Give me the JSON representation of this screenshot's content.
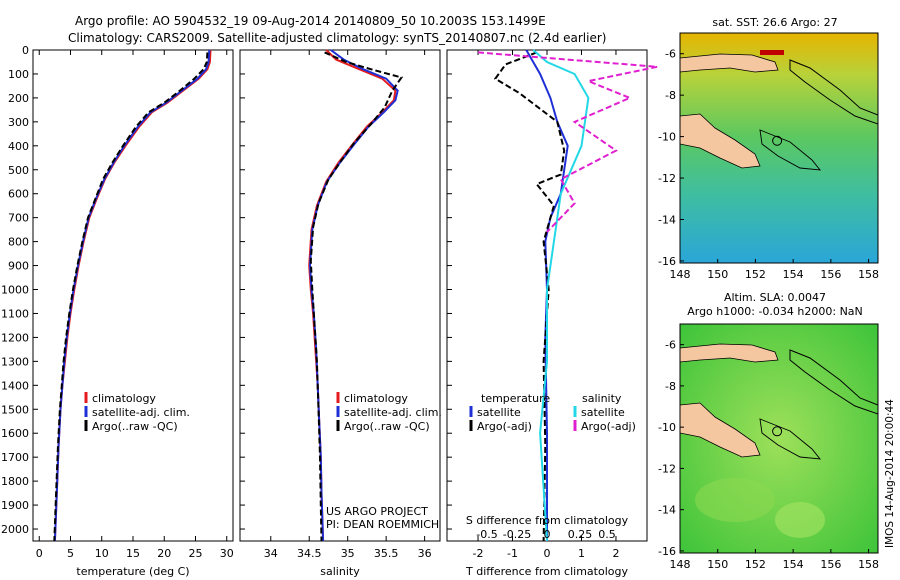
{
  "header": {
    "line1": "Argo profile: AO 5904532_19 09-Aug-2014 20140809_50 10.2003S 153.1499E",
    "line2": "Climatology: CARS2009. Satellite-adjusted climatology: synTS_20140807.nc (2.4d earlier)"
  },
  "colors": {
    "climatology": "#e41a1c",
    "satellite": "#1f2fd6",
    "argo": "#000000",
    "salinity_sat": "#22d8e6",
    "salinity_argo": "#e020d0"
  },
  "chart_data": [
    {
      "type": "line",
      "title": "",
      "xlabel": "temperature (deg C)",
      "ylabel": "",
      "xlim": [
        -1,
        31
      ],
      "ylim": [
        2050,
        0
      ],
      "xticks": [
        0,
        5,
        10,
        15,
        20,
        25,
        30
      ],
      "yticks": [
        0,
        100,
        200,
        300,
        400,
        500,
        600,
        700,
        800,
        900,
        1000,
        1100,
        1200,
        1300,
        1400,
        1500,
        1600,
        1700,
        1800,
        1900,
        2000
      ],
      "legend": [
        "climatology",
        "satellite-adj. clim.",
        "Argo(..raw -QC)"
      ],
      "series": [
        {
          "name": "climatology",
          "color": "#e41a1c",
          "x": [
            27.4,
            27.3,
            26.9,
            25.5,
            23.0,
            20.5,
            18.0,
            16.0,
            13.8,
            12.0,
            10.5,
            9.2,
            8.0,
            7.1,
            6.3,
            5.6,
            5.0,
            4.5,
            4.1,
            3.7,
            3.4,
            3.1,
            2.8,
            2.5
          ],
          "y": [
            0,
            50,
            80,
            120,
            170,
            220,
            260,
            320,
            400,
            470,
            540,
            620,
            700,
            800,
            900,
            1000,
            1100,
            1200,
            1300,
            1400,
            1500,
            1650,
            1850,
            2050
          ]
        },
        {
          "name": "satellite-adj. clim.",
          "color": "#1f2fd6",
          "x": [
            27.2,
            27.1,
            26.7,
            25.3,
            22.8,
            20.3,
            17.8,
            15.8,
            13.6,
            11.9,
            10.4,
            9.1,
            7.9,
            7.0,
            6.2,
            5.5,
            4.9,
            4.4,
            4.0,
            3.7,
            3.4,
            3.1,
            2.8,
            2.5
          ],
          "y": [
            0,
            50,
            80,
            120,
            170,
            220,
            260,
            320,
            400,
            470,
            540,
            620,
            700,
            800,
            900,
            1000,
            1100,
            1200,
            1300,
            1400,
            1500,
            1650,
            1850,
            2050
          ]
        },
        {
          "name": "Argo(..raw -QC)",
          "color": "#000000",
          "x": [
            26.9,
            26.8,
            26.3,
            24.8,
            22.5,
            20.0,
            17.5,
            15.5,
            13.4,
            11.7,
            10.2,
            9.0,
            7.8,
            6.9,
            6.1,
            5.4,
            4.8,
            4.3,
            3.9,
            3.6,
            3.3,
            3.0,
            2.7,
            2.4
          ],
          "y": [
            10,
            50,
            80,
            120,
            170,
            220,
            260,
            320,
            400,
            470,
            540,
            620,
            700,
            800,
            900,
            1000,
            1100,
            1200,
            1300,
            1400,
            1500,
            1650,
            1850,
            2050
          ]
        }
      ]
    },
    {
      "type": "line",
      "xlabel": "salinity",
      "xlim": [
        33.6,
        36.2
      ],
      "ylim": [
        2050,
        0
      ],
      "xticks": [
        34,
        34.5,
        35,
        35.5,
        36
      ],
      "legend": [
        "climatology",
        "satellite-adj. clim.",
        "Argo(..raw -QC)"
      ],
      "series": [
        {
          "name": "climatology",
          "color": "#e41a1c",
          "x": [
            34.72,
            34.85,
            35.15,
            35.45,
            35.62,
            35.6,
            35.45,
            35.25,
            35.05,
            34.88,
            34.72,
            34.6,
            34.53,
            34.5,
            34.52,
            34.55,
            34.58,
            34.61,
            34.63,
            34.65,
            34.66,
            34.67,
            34.68
          ],
          "y": [
            0,
            40,
            80,
            120,
            170,
            210,
            260,
            320,
            400,
            470,
            550,
            650,
            750,
            900,
            1000,
            1100,
            1250,
            1400,
            1550,
            1700,
            1850,
            1950,
            2050
          ]
        },
        {
          "name": "satellite-adj. clim.",
          "color": "#1f2fd6",
          "x": [
            34.78,
            34.95,
            35.2,
            35.5,
            35.65,
            35.62,
            35.47,
            35.27,
            35.07,
            34.9,
            34.73,
            34.61,
            34.54,
            34.51,
            34.53,
            34.56,
            34.59,
            34.61,
            34.63,
            34.65,
            34.66,
            34.67,
            34.68
          ],
          "y": [
            0,
            40,
            80,
            120,
            170,
            210,
            260,
            320,
            400,
            470,
            550,
            650,
            750,
            900,
            1000,
            1100,
            1250,
            1400,
            1550,
            1700,
            1850,
            1950,
            2050
          ]
        },
        {
          "name": "Argo(..raw -QC)",
          "color": "#000000",
          "x": [
            34.7,
            34.98,
            35.3,
            35.7,
            35.58,
            35.48,
            35.3,
            35.08,
            34.92,
            34.75,
            34.62,
            34.55,
            34.52,
            34.54,
            34.57,
            34.6,
            34.62,
            34.64,
            34.65,
            34.66
          ],
          "y": [
            10,
            50,
            80,
            115,
            170,
            240,
            310,
            390,
            460,
            540,
            640,
            740,
            880,
            1000,
            1150,
            1300,
            1500,
            1700,
            1900,
            2050
          ]
        }
      ]
    },
    {
      "type": "line",
      "xlabel": "T difference from climatology",
      "xlabel2": "S difference from climatology",
      "xlim": [
        -2.9,
        2.9
      ],
      "ylim": [
        2050,
        0
      ],
      "xticks": [
        -2,
        -1,
        0,
        1,
        2
      ],
      "xticks_top": [
        "-0.5",
        "-0.25",
        "0",
        "0.25",
        "0.5"
      ],
      "legend": {
        "temperature": "temperature",
        "salinity": "salinity",
        "t_sat": "satellite",
        "t_argo": "Argo(-adj)",
        "s_sat": "satellite",
        "s_argo": "Argo(-adj)"
      },
      "series": [
        {
          "name": "temperature satellite",
          "color": "#1f2fd6",
          "x": [
            -0.6,
            -0.4,
            -0.2,
            0.1,
            0.3,
            0.6,
            0.5,
            0.4,
            0.1,
            -0.05,
            0.0,
            -0.05,
            0.0,
            0.0
          ],
          "y": [
            0,
            50,
            100,
            200,
            300,
            400,
            500,
            600,
            700,
            800,
            1000,
            1200,
            1600,
            2050
          ]
        },
        {
          "name": "temperature Argo(-adj)",
          "color": "#000000",
          "x": [
            -0.3,
            -1.2,
            -1.5,
            -0.8,
            0.3,
            0.5,
            0.4,
            -0.3,
            0.2,
            -0.1,
            0.05,
            -0.1,
            -0.05,
            -0.1
          ],
          "y": [
            10,
            60,
            120,
            180,
            300,
            420,
            520,
            560,
            650,
            800,
            1000,
            1300,
            1650,
            2050
          ]
        },
        {
          "name": "salinity satellite",
          "color": "#22d8e6",
          "x": [
            -0.1,
            0.0,
            0.2,
            0.3,
            0.25,
            0.1,
            0.05,
            0.0,
            0.0,
            -0.05,
            0.0
          ],
          "y": [
            0,
            50,
            100,
            200,
            400,
            600,
            800,
            1000,
            1300,
            1600,
            2050
          ]
        },
        {
          "name": "salinity Argo(-adj)",
          "color": "#e020d0",
          "x": [
            -0.5,
            0.8,
            0.3,
            0.6,
            0.2,
            0.5,
            0.1,
            0.2,
            0.0
          ],
          "y": [
            10,
            70,
            130,
            200,
            300,
            420,
            540,
            640,
            760
          ]
        }
      ]
    }
  ],
  "footer_note": {
    "line1": "US ARGO PROJECT",
    "line2": "PI: DEAN ROEMMICH"
  },
  "maps": {
    "sst": {
      "title": "sat. SST: 26.6 Argo: 27"
    },
    "sla": {
      "title1": "Altim. SLA: 0.0047",
      "title2": "Argo h1000: -0.034 h2000: NaN"
    },
    "lon_ticks": [
      "148",
      "150",
      "152",
      "154",
      "156",
      "158"
    ],
    "lat_ticks": [
      "-6",
      "-8",
      "-10",
      "-12",
      "-14",
      "-16"
    ],
    "float_marker": {
      "lon": 153.15,
      "lat": -10.2
    }
  },
  "stamp": "IMOS 14-Aug-2014 20:00:44"
}
